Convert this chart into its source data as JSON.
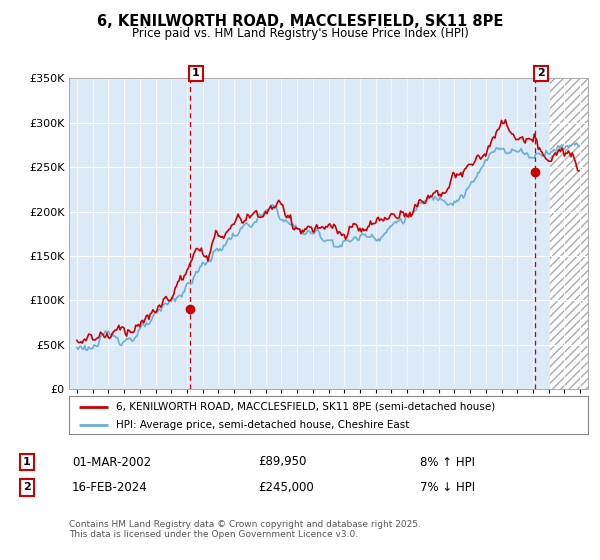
{
  "title": "6, KENILWORTH ROAD, MACCLESFIELD, SK11 8PE",
  "subtitle": "Price paid vs. HM Land Registry's House Price Index (HPI)",
  "ylim": [
    0,
    350000
  ],
  "yticks": [
    0,
    50000,
    100000,
    150000,
    200000,
    250000,
    300000,
    350000
  ],
  "ytick_labels": [
    "£0",
    "£50K",
    "£100K",
    "£150K",
    "£200K",
    "£250K",
    "£300K",
    "£350K"
  ],
  "xlim": [
    1994.5,
    2027.5
  ],
  "red_line_color": "#cc0000",
  "blue_line_color": "#6baed6",
  "plot_bg_color": "#dce9f7",
  "marker1_x": 2002.17,
  "marker1_y": 89950,
  "marker2_x": 2024.12,
  "marker2_y": 245000,
  "vline_color": "#cc0000",
  "legend_label_red": "6, KENILWORTH ROAD, MACCLESFIELD, SK11 8PE (semi-detached house)",
  "legend_label_blue": "HPI: Average price, semi-detached house, Cheshire East",
  "transaction1_date": "01-MAR-2002",
  "transaction1_price": "£89,950",
  "transaction1_hpi": "8% ↑ HPI",
  "transaction2_date": "16-FEB-2024",
  "transaction2_price": "£245,000",
  "transaction2_hpi": "7% ↓ HPI",
  "footnote": "Contains HM Land Registry data © Crown copyright and database right 2025.\nThis data is licensed under the Open Government Licence v3.0.",
  "background_color": "#ffffff",
  "hatch_start": 2025.0,
  "hatch_end": 2027.5
}
